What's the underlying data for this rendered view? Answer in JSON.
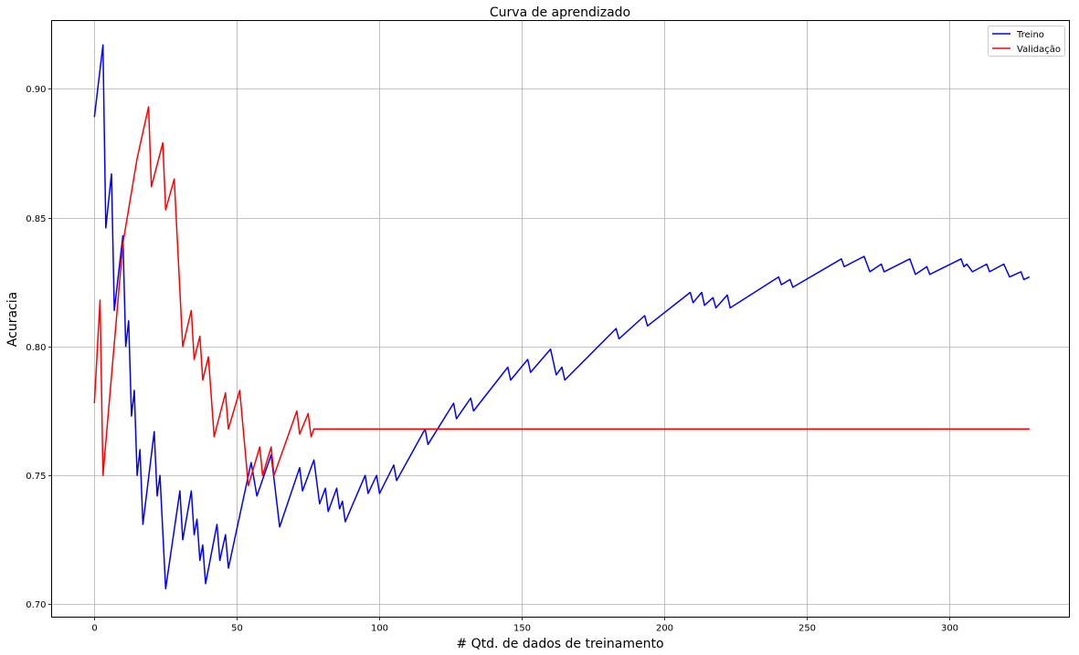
{
  "chart_data": {
    "type": "line",
    "title": "Curva de aprendizado",
    "xlabel": "# Qtd. de dados de treinamento",
    "ylabel": "Acuracia",
    "xlim": [
      -15,
      342
    ],
    "ylim": [
      0.695,
      0.9265
    ],
    "xticks": [
      0,
      50,
      100,
      150,
      200,
      250,
      300
    ],
    "yticks": [
      0.7,
      0.75,
      0.8,
      0.85,
      0.9
    ],
    "ytick_labels": [
      "0.70",
      "0.75",
      "0.80",
      "0.85",
      "0.90"
    ],
    "grid": true,
    "legend_position": "top-right",
    "series": [
      {
        "name": "Treino",
        "color": "#0000ff",
        "points": [
          [
            0,
            0.889
          ],
          [
            3,
            0.917
          ],
          [
            4,
            0.846
          ],
          [
            6,
            0.867
          ],
          [
            7,
            0.814
          ],
          [
            10,
            0.843
          ],
          [
            11,
            0.8
          ],
          [
            12,
            0.81
          ],
          [
            13,
            0.773
          ],
          [
            14,
            0.783
          ],
          [
            15,
            0.75
          ],
          [
            16,
            0.76
          ],
          [
            17,
            0.731
          ],
          [
            21,
            0.767
          ],
          [
            22,
            0.742
          ],
          [
            23,
            0.75
          ],
          [
            25,
            0.706
          ],
          [
            30,
            0.744
          ],
          [
            31,
            0.725
          ],
          [
            34,
            0.744
          ],
          [
            35,
            0.727
          ],
          [
            36,
            0.733
          ],
          [
            37,
            0.717
          ],
          [
            38,
            0.723
          ],
          [
            39,
            0.708
          ],
          [
            43,
            0.731
          ],
          [
            44,
            0.717
          ],
          [
            46,
            0.727
          ],
          [
            47,
            0.714
          ],
          [
            55,
            0.755
          ],
          [
            57,
            0.742
          ],
          [
            62,
            0.758
          ],
          [
            65,
            0.73
          ],
          [
            72,
            0.753
          ],
          [
            73,
            0.744
          ],
          [
            77,
            0.756
          ],
          [
            79,
            0.739
          ],
          [
            81,
            0.745
          ],
          [
            82,
            0.736
          ],
          [
            85,
            0.745
          ],
          [
            86,
            0.737
          ],
          [
            87,
            0.74
          ],
          [
            88,
            0.732
          ],
          [
            95,
            0.75
          ],
          [
            96,
            0.743
          ],
          [
            99,
            0.75
          ],
          [
            100,
            0.743
          ],
          [
            105,
            0.754
          ],
          [
            106,
            0.748
          ],
          [
            116,
            0.768
          ],
          [
            117,
            0.762
          ],
          [
            126,
            0.778
          ],
          [
            127,
            0.772
          ],
          [
            132,
            0.78
          ],
          [
            133,
            0.775
          ],
          [
            145,
            0.792
          ],
          [
            146,
            0.787
          ],
          [
            152,
            0.795
          ],
          [
            153,
            0.79
          ],
          [
            160,
            0.799
          ],
          [
            162,
            0.789
          ],
          [
            164,
            0.792
          ],
          [
            165,
            0.787
          ],
          [
            183,
            0.807
          ],
          [
            184,
            0.803
          ],
          [
            193,
            0.812
          ],
          [
            194,
            0.808
          ],
          [
            209,
            0.821
          ],
          [
            210,
            0.817
          ],
          [
            213,
            0.821
          ],
          [
            214,
            0.816
          ],
          [
            217,
            0.819
          ],
          [
            218,
            0.815
          ],
          [
            222,
            0.82
          ],
          [
            223,
            0.815
          ],
          [
            240,
            0.827
          ],
          [
            241,
            0.824
          ],
          [
            244,
            0.826
          ],
          [
            245,
            0.823
          ],
          [
            262,
            0.834
          ],
          [
            263,
            0.831
          ],
          [
            270,
            0.835
          ],
          [
            272,
            0.829
          ],
          [
            276,
            0.832
          ],
          [
            277,
            0.829
          ],
          [
            286,
            0.834
          ],
          [
            288,
            0.828
          ],
          [
            292,
            0.831
          ],
          [
            293,
            0.828
          ],
          [
            304,
            0.834
          ],
          [
            305,
            0.831
          ],
          [
            306,
            0.832
          ],
          [
            308,
            0.829
          ],
          [
            313,
            0.832
          ],
          [
            314,
            0.829
          ],
          [
            319,
            0.832
          ],
          [
            321,
            0.827
          ],
          [
            325,
            0.829
          ],
          [
            326,
            0.826
          ],
          [
            328,
            0.827
          ]
        ]
      },
      {
        "name": "Validação",
        "color": "#ff0000",
        "points": [
          [
            0,
            0.778
          ],
          [
            2,
            0.818
          ],
          [
            3,
            0.75
          ],
          [
            10,
            0.84
          ],
          [
            15,
            0.873
          ],
          [
            19,
            0.893
          ],
          [
            20,
            0.862
          ],
          [
            24,
            0.879
          ],
          [
            25,
            0.853
          ],
          [
            28,
            0.865
          ],
          [
            31,
            0.8
          ],
          [
            34,
            0.814
          ],
          [
            35,
            0.795
          ],
          [
            37,
            0.804
          ],
          [
            38,
            0.787
          ],
          [
            40,
            0.796
          ],
          [
            42,
            0.765
          ],
          [
            46,
            0.782
          ],
          [
            47,
            0.768
          ],
          [
            51,
            0.783
          ],
          [
            54,
            0.746
          ],
          [
            58,
            0.761
          ],
          [
            59,
            0.75
          ],
          [
            62,
            0.761
          ],
          [
            63,
            0.75
          ],
          [
            71,
            0.775
          ],
          [
            72,
            0.766
          ],
          [
            75,
            0.774
          ],
          [
            76,
            0.765
          ],
          [
            77,
            0.768
          ],
          [
            328,
            0.768
          ]
        ]
      }
    ]
  }
}
